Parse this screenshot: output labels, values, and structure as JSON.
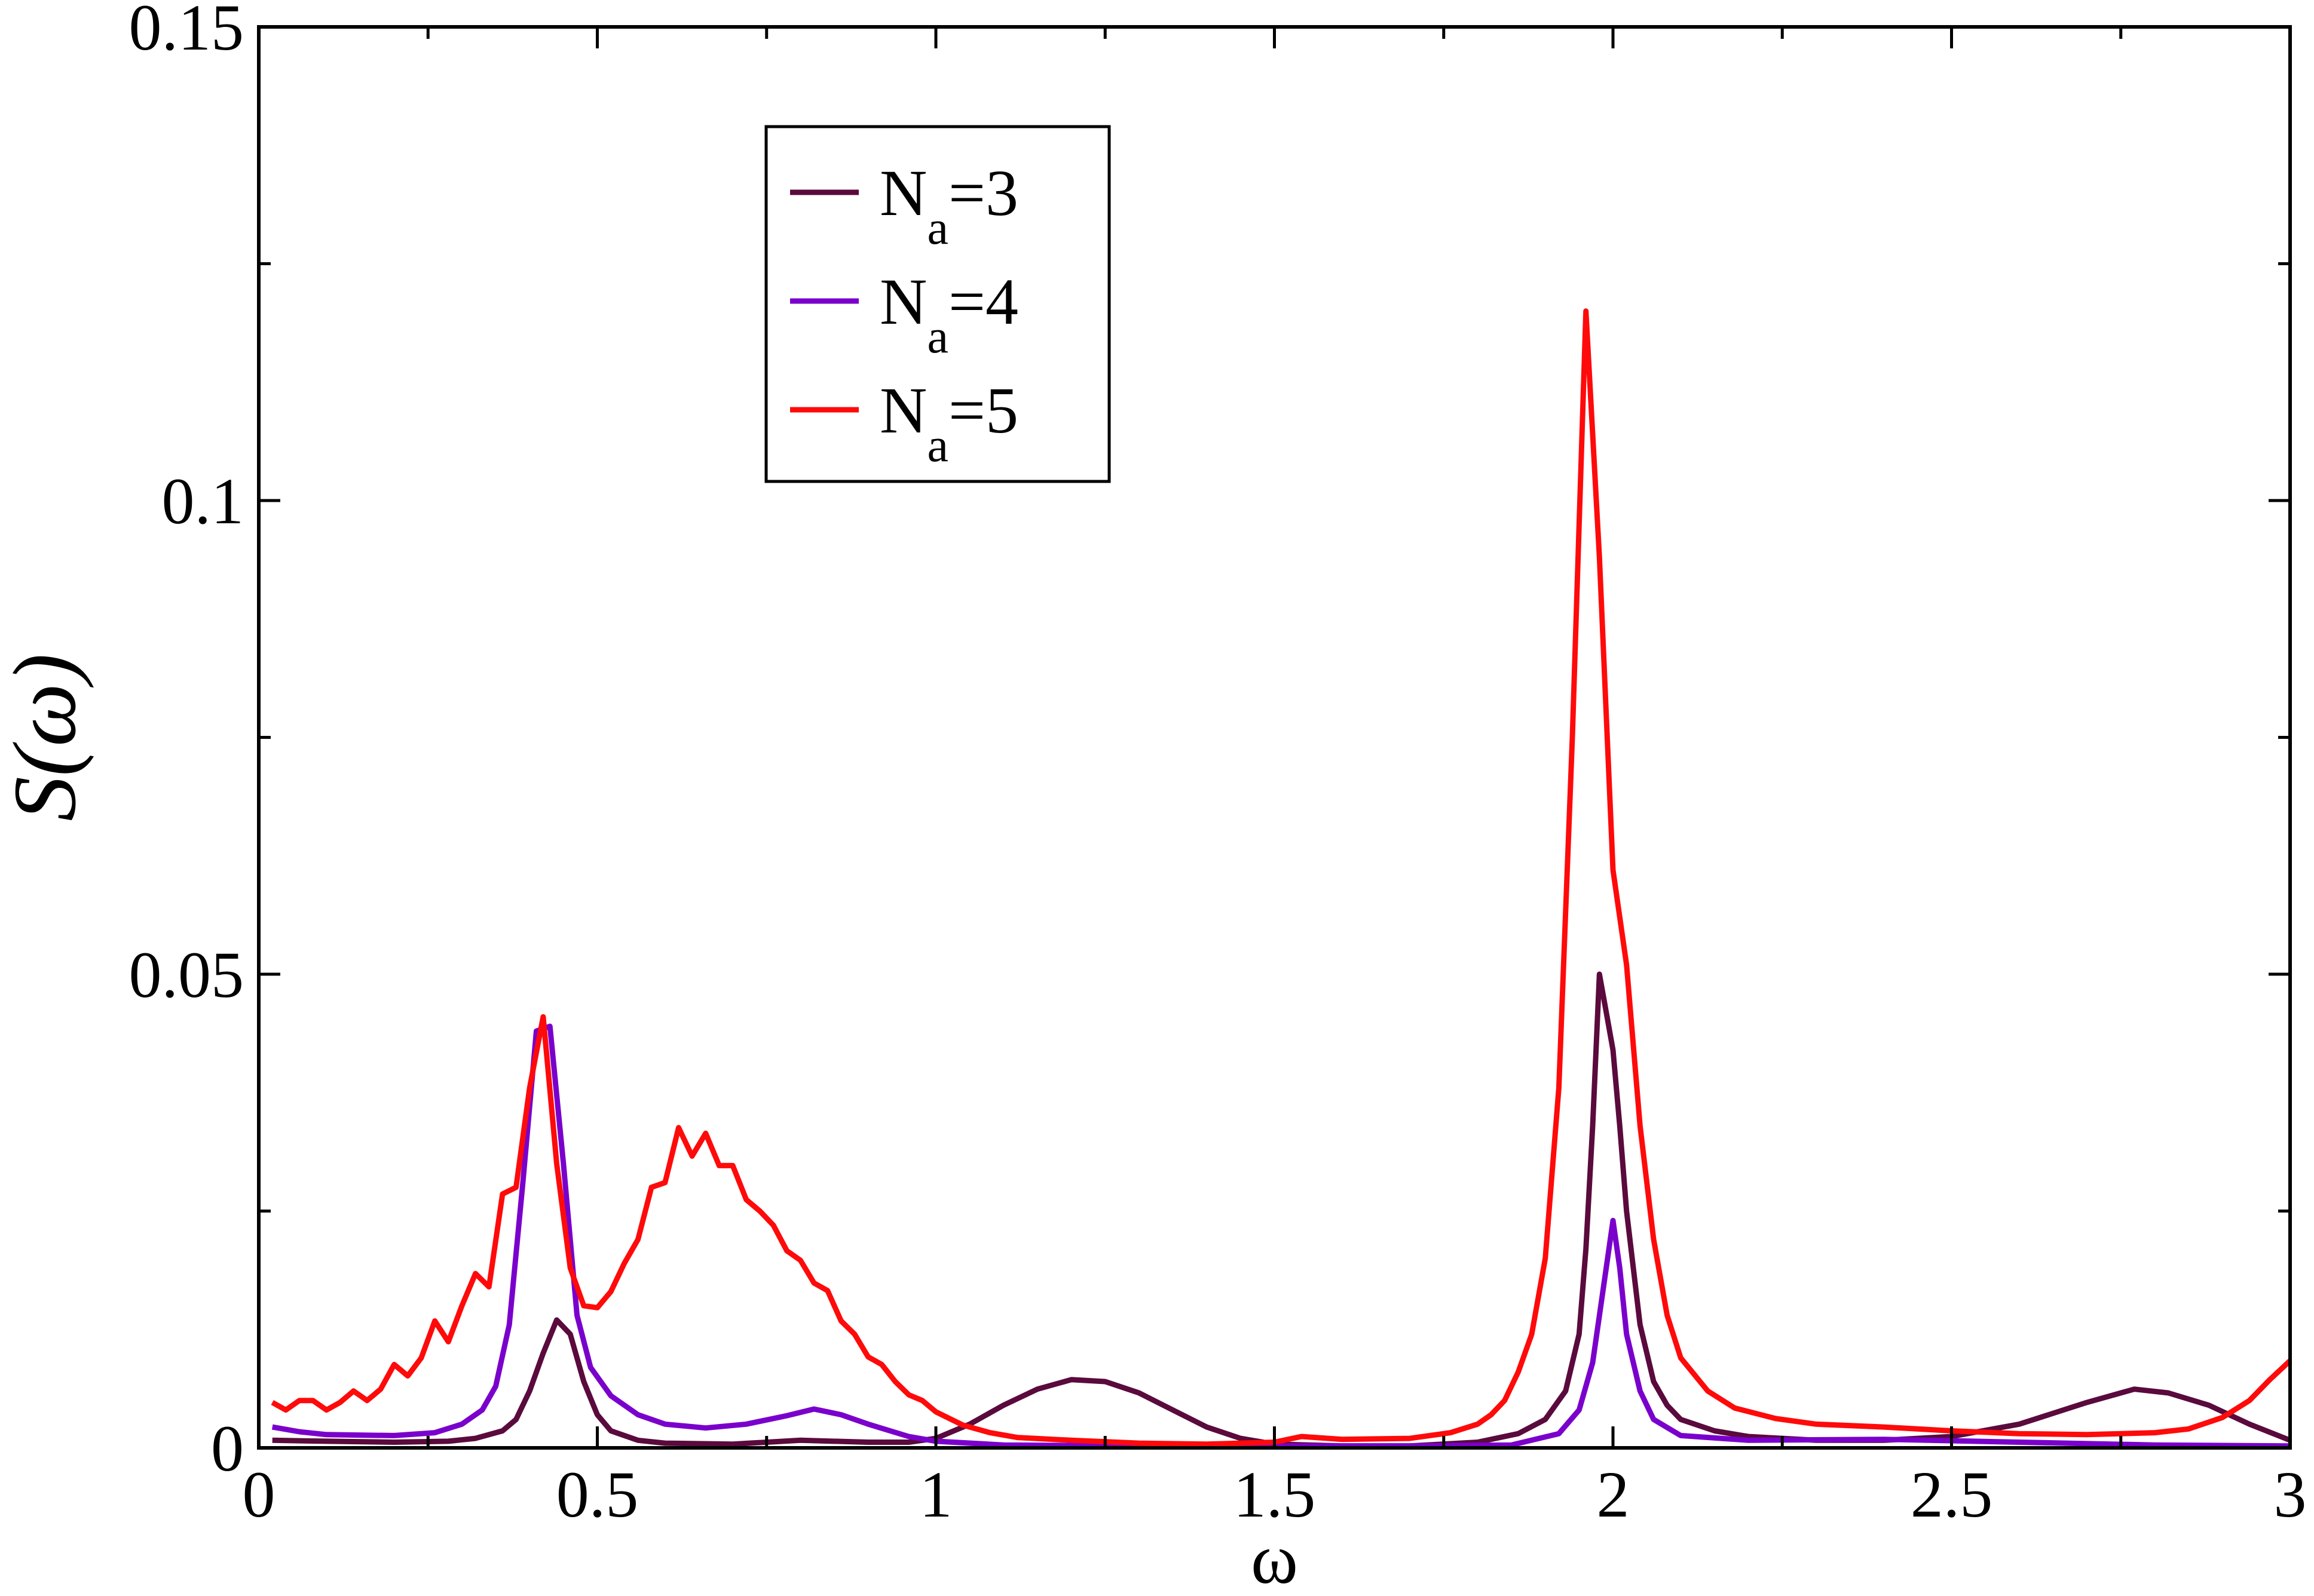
{
  "chart_data": {
    "type": "line",
    "xlabel": "ω",
    "ylabel": "S(ω)",
    "xlim": [
      0,
      3
    ],
    "ylim": [
      0,
      0.15
    ],
    "xticks": [
      0,
      0.5,
      1,
      1.5,
      2,
      2.5,
      3
    ],
    "xtick_labels": [
      "0",
      "0.5",
      "1",
      "1.5",
      "2",
      "2.5",
      "3"
    ],
    "yticks": [
      0,
      0.05,
      0.1,
      0.15
    ],
    "ytick_labels": [
      "0",
      "0.05",
      "0.1",
      "0.15"
    ],
    "y_minor_step": 0.025,
    "x_minor_step": 0.25,
    "grid": false,
    "legend_position": "top-left",
    "series": [
      {
        "name": "N_a=3",
        "legend_main": "N",
        "legend_sub": "a",
        "legend_tail": "=3",
        "color": "#5a0a3c",
        "points": [
          [
            0.02,
            0.0008
          ],
          [
            0.1,
            0.0007
          ],
          [
            0.2,
            0.0006
          ],
          [
            0.28,
            0.0007
          ],
          [
            0.32,
            0.001
          ],
          [
            0.36,
            0.0018
          ],
          [
            0.38,
            0.003
          ],
          [
            0.4,
            0.006
          ],
          [
            0.42,
            0.01
          ],
          [
            0.44,
            0.0135
          ],
          [
            0.46,
            0.012
          ],
          [
            0.48,
            0.007
          ],
          [
            0.5,
            0.0035
          ],
          [
            0.52,
            0.0018
          ],
          [
            0.56,
            0.0008
          ],
          [
            0.6,
            0.0005
          ],
          [
            0.7,
            0.0004
          ],
          [
            0.8,
            0.0008
          ],
          [
            0.9,
            0.0006
          ],
          [
            0.96,
            0.0006
          ],
          [
            1.0,
            0.001
          ],
          [
            1.05,
            0.0025
          ],
          [
            1.1,
            0.0045
          ],
          [
            1.15,
            0.0062
          ],
          [
            1.2,
            0.0072
          ],
          [
            1.25,
            0.007
          ],
          [
            1.3,
            0.0058
          ],
          [
            1.35,
            0.004
          ],
          [
            1.4,
            0.0022
          ],
          [
            1.45,
            0.001
          ],
          [
            1.5,
            0.0004
          ],
          [
            1.6,
            0.0002
          ],
          [
            1.7,
            0.0002
          ],
          [
            1.8,
            0.0006
          ],
          [
            1.86,
            0.0015
          ],
          [
            1.9,
            0.003
          ],
          [
            1.93,
            0.006
          ],
          [
            1.95,
            0.012
          ],
          [
            1.96,
            0.021
          ],
          [
            1.97,
            0.034
          ],
          [
            1.98,
            0.05
          ],
          [
            1.99,
            0.046
          ],
          [
            2.0,
            0.042
          ],
          [
            2.01,
            0.034
          ],
          [
            2.02,
            0.025
          ],
          [
            2.04,
            0.013
          ],
          [
            2.06,
            0.007
          ],
          [
            2.08,
            0.0045
          ],
          [
            2.1,
            0.003
          ],
          [
            2.15,
            0.0018
          ],
          [
            2.2,
            0.0012
          ],
          [
            2.3,
            0.0008
          ],
          [
            2.4,
            0.0008
          ],
          [
            2.5,
            0.0012
          ],
          [
            2.6,
            0.0025
          ],
          [
            2.7,
            0.0048
          ],
          [
            2.77,
            0.0062
          ],
          [
            2.82,
            0.0058
          ],
          [
            2.88,
            0.0045
          ],
          [
            2.94,
            0.0025
          ],
          [
            3.0,
            0.0008
          ]
        ]
      },
      {
        "name": "N_a=4",
        "legend_main": "N",
        "legend_sub": "a",
        "legend_tail": "=4",
        "color": "#7a00cc",
        "points": [
          [
            0.02,
            0.0022
          ],
          [
            0.06,
            0.0017
          ],
          [
            0.1,
            0.0014
          ],
          [
            0.2,
            0.0013
          ],
          [
            0.26,
            0.0016
          ],
          [
            0.3,
            0.0025
          ],
          [
            0.33,
            0.004
          ],
          [
            0.35,
            0.0065
          ],
          [
            0.37,
            0.013
          ],
          [
            0.39,
            0.028
          ],
          [
            0.41,
            0.044
          ],
          [
            0.43,
            0.0445
          ],
          [
            0.45,
            0.03
          ],
          [
            0.47,
            0.014
          ],
          [
            0.49,
            0.0085
          ],
          [
            0.52,
            0.0055
          ],
          [
            0.56,
            0.0035
          ],
          [
            0.6,
            0.0025
          ],
          [
            0.66,
            0.0021
          ],
          [
            0.72,
            0.0025
          ],
          [
            0.78,
            0.0034
          ],
          [
            0.82,
            0.0041
          ],
          [
            0.86,
            0.0035
          ],
          [
            0.9,
            0.0025
          ],
          [
            0.96,
            0.0012
          ],
          [
            1.0,
            0.0007
          ],
          [
            1.1,
            0.0003
          ],
          [
            1.3,
            0.0002
          ],
          [
            1.5,
            0.0002
          ],
          [
            1.7,
            0.0002
          ],
          [
            1.85,
            0.0003
          ],
          [
            1.92,
            0.0015
          ],
          [
            1.95,
            0.004
          ],
          [
            1.97,
            0.009
          ],
          [
            1.99,
            0.019
          ],
          [
            2.0,
            0.024
          ],
          [
            2.01,
            0.019
          ],
          [
            2.02,
            0.012
          ],
          [
            2.04,
            0.006
          ],
          [
            2.06,
            0.003
          ],
          [
            2.1,
            0.0013
          ],
          [
            2.2,
            0.0008
          ],
          [
            2.4,
            0.0009
          ],
          [
            2.6,
            0.0006
          ],
          [
            2.8,
            0.0003
          ],
          [
            3.0,
            0.0002
          ]
        ]
      },
      {
        "name": "N_a=5",
        "legend_main": "N",
        "legend_sub": "a",
        "legend_tail": "=5",
        "color": "#ff0a0a",
        "points": [
          [
            0.02,
            0.0048
          ],
          [
            0.04,
            0.004
          ],
          [
            0.06,
            0.005
          ],
          [
            0.08,
            0.005
          ],
          [
            0.1,
            0.004
          ],
          [
            0.12,
            0.0048
          ],
          [
            0.14,
            0.006
          ],
          [
            0.16,
            0.005
          ],
          [
            0.18,
            0.0062
          ],
          [
            0.2,
            0.0088
          ],
          [
            0.22,
            0.0076
          ],
          [
            0.24,
            0.0095
          ],
          [
            0.26,
            0.0134
          ],
          [
            0.28,
            0.0112
          ],
          [
            0.3,
            0.015
          ],
          [
            0.32,
            0.0184
          ],
          [
            0.34,
            0.017
          ],
          [
            0.36,
            0.0268
          ],
          [
            0.38,
            0.0275
          ],
          [
            0.4,
            0.038
          ],
          [
            0.42,
            0.0455
          ],
          [
            0.44,
            0.03
          ],
          [
            0.46,
            0.019
          ],
          [
            0.48,
            0.015
          ],
          [
            0.5,
            0.0148
          ],
          [
            0.52,
            0.0165
          ],
          [
            0.54,
            0.0195
          ],
          [
            0.56,
            0.022
          ],
          [
            0.58,
            0.0275
          ],
          [
            0.6,
            0.028
          ],
          [
            0.62,
            0.0338
          ],
          [
            0.64,
            0.0308
          ],
          [
            0.66,
            0.0332
          ],
          [
            0.68,
            0.0298
          ],
          [
            0.7,
            0.0298
          ],
          [
            0.72,
            0.0262
          ],
          [
            0.74,
            0.025
          ],
          [
            0.76,
            0.0235
          ],
          [
            0.78,
            0.0208
          ],
          [
            0.8,
            0.0198
          ],
          [
            0.82,
            0.0174
          ],
          [
            0.84,
            0.0166
          ],
          [
            0.86,
            0.0134
          ],
          [
            0.88,
            0.012
          ],
          [
            0.9,
            0.0096
          ],
          [
            0.92,
            0.0088
          ],
          [
            0.94,
            0.007
          ],
          [
            0.96,
            0.0056
          ],
          [
            0.98,
            0.005
          ],
          [
            1.0,
            0.0038
          ],
          [
            1.04,
            0.0024
          ],
          [
            1.08,
            0.0016
          ],
          [
            1.12,
            0.0011
          ],
          [
            1.2,
            0.0008
          ],
          [
            1.3,
            0.0005
          ],
          [
            1.4,
            0.0004
          ],
          [
            1.5,
            0.0006
          ],
          [
            1.54,
            0.0012
          ],
          [
            1.6,
            0.0009
          ],
          [
            1.7,
            0.001
          ],
          [
            1.76,
            0.0016
          ],
          [
            1.8,
            0.0025
          ],
          [
            1.82,
            0.0035
          ],
          [
            1.84,
            0.005
          ],
          [
            1.86,
            0.008
          ],
          [
            1.88,
            0.012
          ],
          [
            1.9,
            0.02
          ],
          [
            1.92,
            0.038
          ],
          [
            1.94,
            0.075
          ],
          [
            1.96,
            0.12
          ],
          [
            1.98,
            0.094
          ],
          [
            2.0,
            0.061
          ],
          [
            2.02,
            0.051
          ],
          [
            2.04,
            0.034
          ],
          [
            2.06,
            0.022
          ],
          [
            2.08,
            0.014
          ],
          [
            2.1,
            0.0095
          ],
          [
            2.14,
            0.006
          ],
          [
            2.18,
            0.0042
          ],
          [
            2.24,
            0.0031
          ],
          [
            2.3,
            0.0025
          ],
          [
            2.4,
            0.0022
          ],
          [
            2.5,
            0.0018
          ],
          [
            2.6,
            0.0015
          ],
          [
            2.7,
            0.0014
          ],
          [
            2.8,
            0.0016
          ],
          [
            2.85,
            0.002
          ],
          [
            2.9,
            0.0032
          ],
          [
            2.94,
            0.005
          ],
          [
            2.97,
            0.0072
          ],
          [
            3.0,
            0.0092
          ]
        ]
      }
    ]
  }
}
